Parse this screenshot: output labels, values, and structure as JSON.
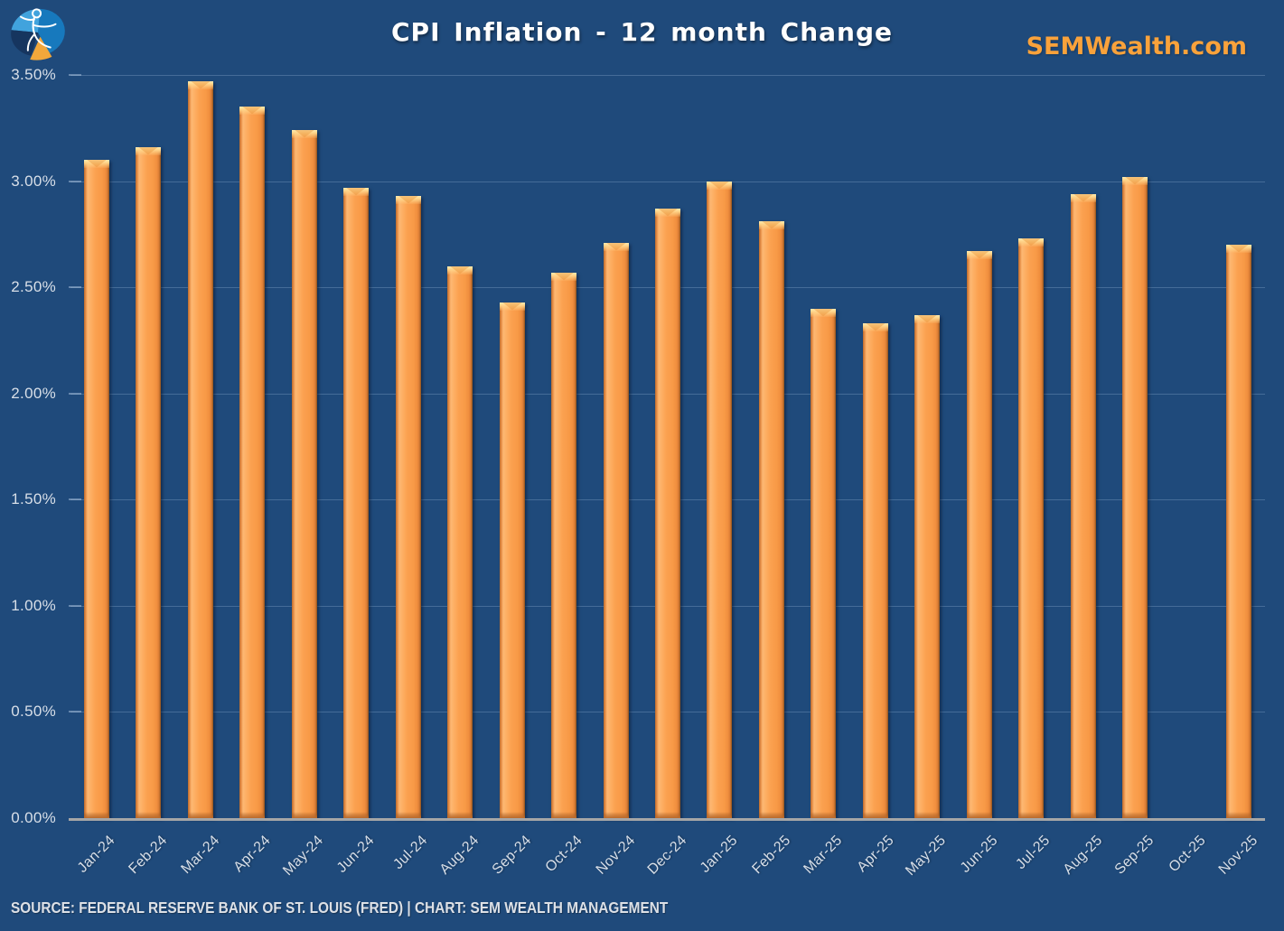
{
  "header": {
    "title": "CPI Inflation - 12 month Change",
    "brand": "SEMWealth.com",
    "logo": "sem-pie-chart-logo"
  },
  "footer": {
    "source_line": "SOURCE: FEDERAL RESERVE BANK OF ST. LOUIS (FRED) | CHART: SEM WEALTH MANAGEMENT"
  },
  "colors": {
    "background": "#1F4A7B",
    "bar_fill": "#FBA150",
    "bar_bevel_light": "#FFE3A3",
    "bar_bevel_dark": "#B96A2C",
    "gridline": "rgba(170,197,230,0.28)",
    "axis_line": "#A6A6A6",
    "title_color": "#FFFFFF",
    "brand_color": "#F9A23B",
    "label_color": "#D8DFE8",
    "logo_light_blue": "#41A3DD",
    "logo_mid_blue": "#1779BD",
    "logo_dark_blue": "#16355F",
    "logo_orange": "#F2A73B"
  },
  "chart_data": {
    "type": "bar",
    "title": "CPI Inflation - 12 month Change",
    "xlabel": "",
    "ylabel": "",
    "ylim": [
      0,
      3.5
    ],
    "ytick_step": 0.5,
    "ytick_labels": [
      "0.00%",
      "0.50%",
      "1.00%",
      "1.50%",
      "2.00%",
      "2.50%",
      "3.00%",
      "3.50%"
    ],
    "grid": true,
    "legend": false,
    "bar_color": "#FBA150",
    "categories": [
      "Jan-24",
      "Feb-24",
      "Mar-24",
      "Apr-24",
      "May-24",
      "Jun-24",
      "Jul-24",
      "Aug-24",
      "Sep-24",
      "Oct-24",
      "Nov-24",
      "Dec-24",
      "Jan-25",
      "Feb-25",
      "Mar-25",
      "Apr-25",
      "May-25",
      "Jun-25",
      "Jul-25",
      "Aug-25",
      "Sep-25",
      "Oct-25",
      "Nov-25"
    ],
    "values": [
      3.1,
      3.16,
      3.47,
      3.35,
      3.24,
      2.97,
      2.93,
      2.6,
      2.43,
      2.57,
      2.71,
      2.87,
      3.0,
      2.81,
      2.4,
      2.33,
      2.37,
      2.67,
      2.73,
      2.94,
      3.02,
      null,
      2.7
    ]
  }
}
